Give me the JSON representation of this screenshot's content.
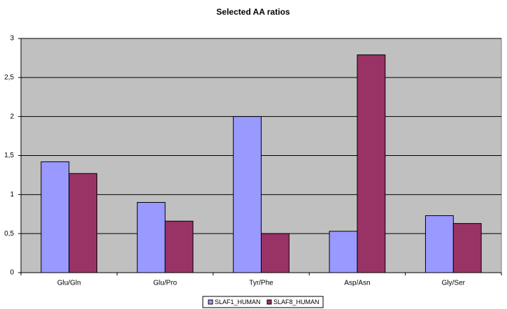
{
  "chart_data": {
    "type": "bar",
    "title": "Selected AA ratios",
    "categories": [
      "Glu/Gln",
      "Glu/Pro",
      "Tyr/Phe",
      "Asp/Asn",
      "Gly/Ser"
    ],
    "series": [
      {
        "name": "SLAF1_HUMAN",
        "color": "#9999ff",
        "values": [
          1.42,
          0.9,
          2.0,
          0.53,
          0.73
        ]
      },
      {
        "name": "SLAF8_HUMAN",
        "color": "#993366",
        "values": [
          1.27,
          0.66,
          0.5,
          2.79,
          0.63
        ]
      }
    ],
    "ylim": [
      0,
      3
    ],
    "yticks": [
      0,
      {
        "value": 0.5,
        "label": "0,5"
      },
      1,
      {
        "value": 1.5,
        "label": "1,5"
      },
      2,
      {
        "value": 2.5,
        "label": "2,5"
      },
      3
    ],
    "grid": true,
    "legend": "bottom"
  }
}
